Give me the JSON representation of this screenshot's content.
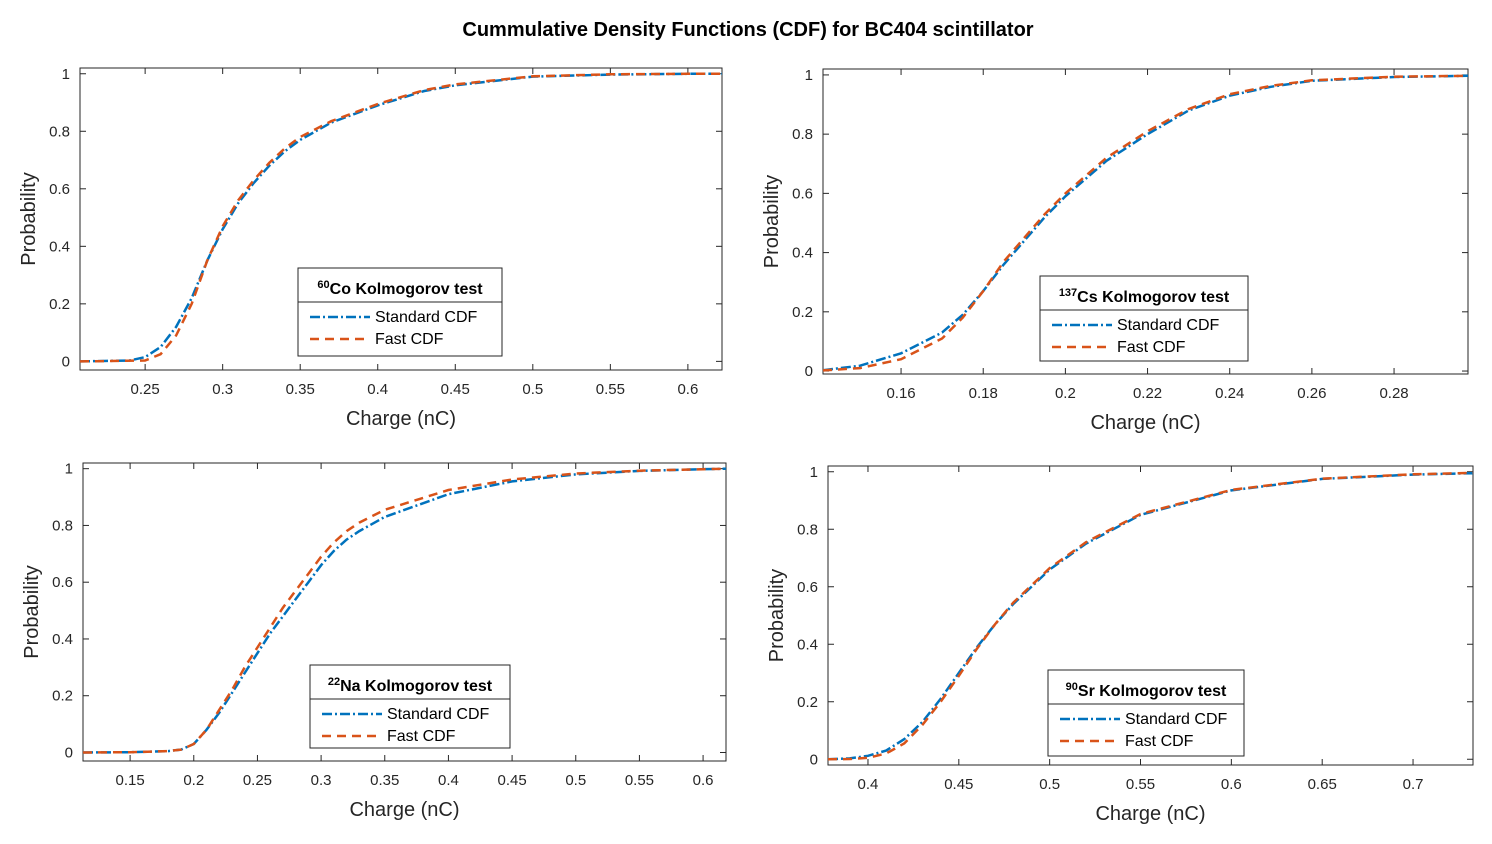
{
  "figure": {
    "title": "Cummulative Density Functions (CDF) for BC404 scintillator"
  },
  "colors": {
    "standard": "#0072BD",
    "fast": "#D95319"
  },
  "chart_data": [
    {
      "type": "line",
      "panel": "top-left",
      "xlabel": "Charge (nC)",
      "ylabel": "Probability",
      "xlim": [
        0.208,
        0.622
      ],
      "ylim": [
        -0.03,
        1.02
      ],
      "xticks": [
        0.25,
        0.3,
        0.35,
        0.4,
        0.45,
        0.5,
        0.55,
        0.6
      ],
      "xtick_labels": [
        "0.25",
        "0.3",
        "0.35",
        "0.4",
        "0.45",
        "0.5",
        "0.55",
        "0.6"
      ],
      "yticks": [
        0,
        0.2,
        0.4,
        0.6,
        0.8,
        1
      ],
      "ytick_labels": [
        "0",
        "0.2",
        "0.4",
        "0.6",
        "0.8",
        "1"
      ],
      "legend": {
        "title_sup": "60",
        "title_text": "Co Kolmogorov test",
        "entries": [
          "Standard CDF",
          "Fast CDF"
        ],
        "placement": "center-bottom"
      },
      "series": [
        {
          "name": "Standard CDF",
          "x": [
            0.208,
            0.24,
            0.25,
            0.26,
            0.27,
            0.28,
            0.29,
            0.3,
            0.31,
            0.32,
            0.33,
            0.34,
            0.35,
            0.37,
            0.4,
            0.43,
            0.45,
            0.5,
            0.55,
            0.6,
            0.622
          ],
          "y": [
            0,
            0.003,
            0.015,
            0.05,
            0.12,
            0.22,
            0.35,
            0.46,
            0.55,
            0.62,
            0.68,
            0.73,
            0.77,
            0.83,
            0.89,
            0.94,
            0.96,
            0.99,
            0.997,
            1.0,
            1.0
          ]
        },
        {
          "name": "Fast CDF",
          "x": [
            0.208,
            0.25,
            0.26,
            0.27,
            0.28,
            0.29,
            0.3,
            0.31,
            0.32,
            0.33,
            0.34,
            0.35,
            0.37,
            0.4,
            0.43,
            0.45,
            0.5,
            0.55,
            0.6,
            0.622
          ],
          "y": [
            0,
            0.003,
            0.025,
            0.09,
            0.2,
            0.35,
            0.47,
            0.56,
            0.63,
            0.69,
            0.74,
            0.78,
            0.835,
            0.895,
            0.943,
            0.963,
            0.991,
            0.998,
            1.0,
            1.0
          ]
        }
      ]
    },
    {
      "type": "line",
      "panel": "top-right",
      "xlabel": "Charge (nC)",
      "ylabel": "Probability",
      "xlim": [
        0.141,
        0.298
      ],
      "ylim": [
        -0.01,
        1.02
      ],
      "xticks": [
        0.16,
        0.18,
        0.2,
        0.22,
        0.24,
        0.26,
        0.28
      ],
      "xtick_labels": [
        "0.16",
        "0.18",
        "0.2",
        "0.22",
        "0.24",
        "0.26",
        "0.28"
      ],
      "yticks": [
        0,
        0.2,
        0.4,
        0.6,
        0.8,
        1
      ],
      "ytick_labels": [
        "0",
        "0.2",
        "0.4",
        "0.6",
        "0.8",
        "1"
      ],
      "legend": {
        "title_sup": "137",
        "title_text": "Cs Kolmogorov test",
        "entries": [
          "Standard CDF",
          "Fast CDF"
        ],
        "placement": "center-bottom"
      },
      "series": [
        {
          "name": "Standard CDF",
          "x": [
            0.141,
            0.15,
            0.16,
            0.17,
            0.175,
            0.18,
            0.185,
            0.19,
            0.195,
            0.2,
            0.21,
            0.22,
            0.23,
            0.24,
            0.25,
            0.26,
            0.28,
            0.298
          ],
          "y": [
            0.003,
            0.018,
            0.06,
            0.13,
            0.19,
            0.27,
            0.36,
            0.44,
            0.52,
            0.59,
            0.71,
            0.8,
            0.88,
            0.93,
            0.96,
            0.98,
            0.993,
            0.997
          ]
        },
        {
          "name": "Fast CDF",
          "x": [
            0.141,
            0.15,
            0.16,
            0.17,
            0.175,
            0.18,
            0.185,
            0.19,
            0.195,
            0.2,
            0.21,
            0.22,
            0.23,
            0.24,
            0.25,
            0.26,
            0.28,
            0.298
          ],
          "y": [
            0.002,
            0.01,
            0.04,
            0.11,
            0.18,
            0.27,
            0.37,
            0.45,
            0.53,
            0.6,
            0.72,
            0.81,
            0.885,
            0.935,
            0.963,
            0.982,
            0.994,
            0.997
          ]
        }
      ]
    },
    {
      "type": "line",
      "panel": "bottom-left",
      "xlabel": "Charge (nC)",
      "ylabel": "Probability",
      "xlim": [
        0.113,
        0.618
      ],
      "ylim": [
        -0.03,
        1.02
      ],
      "xticks": [
        0.15,
        0.2,
        0.25,
        0.3,
        0.35,
        0.4,
        0.45,
        0.5,
        0.55,
        0.6
      ],
      "xtick_labels": [
        "0.15",
        "0.2",
        "0.25",
        "0.3",
        "0.35",
        "0.4",
        "0.45",
        "0.5",
        "0.55",
        "0.6"
      ],
      "yticks": [
        0,
        0.2,
        0.4,
        0.6,
        0.8,
        1
      ],
      "ytick_labels": [
        "0",
        "0.2",
        "0.4",
        "0.6",
        "0.8",
        "1"
      ],
      "legend": {
        "title_sup": "22",
        "title_text": "Na Kolmogorov test",
        "entries": [
          "Standard CDF",
          "Fast CDF"
        ],
        "placement": "center-bottom"
      },
      "series": [
        {
          "name": "Standard CDF",
          "x": [
            0.113,
            0.15,
            0.18,
            0.19,
            0.2,
            0.21,
            0.22,
            0.23,
            0.24,
            0.25,
            0.26,
            0.27,
            0.28,
            0.29,
            0.3,
            0.31,
            0.32,
            0.33,
            0.35,
            0.4,
            0.45,
            0.5,
            0.55,
            0.6,
            0.618
          ],
          "y": [
            0,
            0.001,
            0.005,
            0.01,
            0.03,
            0.08,
            0.14,
            0.21,
            0.28,
            0.35,
            0.42,
            0.48,
            0.54,
            0.6,
            0.66,
            0.71,
            0.75,
            0.78,
            0.83,
            0.91,
            0.955,
            0.98,
            0.992,
            0.998,
            1.0
          ]
        },
        {
          "name": "Fast CDF",
          "x": [
            0.113,
            0.15,
            0.18,
            0.19,
            0.2,
            0.21,
            0.22,
            0.23,
            0.24,
            0.25,
            0.26,
            0.27,
            0.28,
            0.29,
            0.3,
            0.31,
            0.32,
            0.33,
            0.35,
            0.4,
            0.45,
            0.5,
            0.55,
            0.6,
            0.618
          ],
          "y": [
            0,
            0.001,
            0.005,
            0.01,
            0.03,
            0.08,
            0.15,
            0.22,
            0.3,
            0.37,
            0.44,
            0.51,
            0.57,
            0.63,
            0.69,
            0.74,
            0.78,
            0.81,
            0.855,
            0.925,
            0.962,
            0.983,
            0.993,
            0.998,
            1.0
          ]
        }
      ]
    },
    {
      "type": "line",
      "panel": "bottom-right",
      "xlabel": "Charge (nC)",
      "ylabel": "Probability",
      "xlim": [
        0.378,
        0.733
      ],
      "ylim": [
        -0.02,
        1.02
      ],
      "xticks": [
        0.4,
        0.45,
        0.5,
        0.55,
        0.6,
        0.65,
        0.7
      ],
      "xtick_labels": [
        "0.4",
        "0.45",
        "0.5",
        "0.55",
        "0.6",
        "0.65",
        "0.7"
      ],
      "yticks": [
        0,
        0.2,
        0.4,
        0.6,
        0.8,
        1
      ],
      "ytick_labels": [
        "0",
        "0.2",
        "0.4",
        "0.6",
        "0.8",
        "1"
      ],
      "legend": {
        "title_sup": "90",
        "title_text": "Sr Kolmogorov test",
        "entries": [
          "Standard CDF",
          "Fast CDF"
        ],
        "placement": "center-bottom"
      },
      "series": [
        {
          "name": "Standard CDF",
          "x": [
            0.378,
            0.39,
            0.4,
            0.41,
            0.42,
            0.43,
            0.44,
            0.45,
            0.46,
            0.47,
            0.48,
            0.5,
            0.52,
            0.55,
            0.6,
            0.65,
            0.7,
            0.733
          ],
          "y": [
            0,
            0.003,
            0.012,
            0.03,
            0.07,
            0.13,
            0.21,
            0.3,
            0.39,
            0.47,
            0.54,
            0.66,
            0.75,
            0.85,
            0.935,
            0.975,
            0.99,
            0.995
          ]
        },
        {
          "name": "Fast CDF",
          "x": [
            0.378,
            0.39,
            0.4,
            0.41,
            0.42,
            0.43,
            0.44,
            0.45,
            0.46,
            0.47,
            0.48,
            0.5,
            0.52,
            0.55,
            0.6,
            0.65,
            0.7,
            0.733
          ],
          "y": [
            0,
            0.001,
            0.005,
            0.02,
            0.055,
            0.12,
            0.2,
            0.29,
            0.385,
            0.47,
            0.545,
            0.665,
            0.755,
            0.853,
            0.937,
            0.976,
            0.991,
            0.996
          ]
        }
      ]
    }
  ]
}
